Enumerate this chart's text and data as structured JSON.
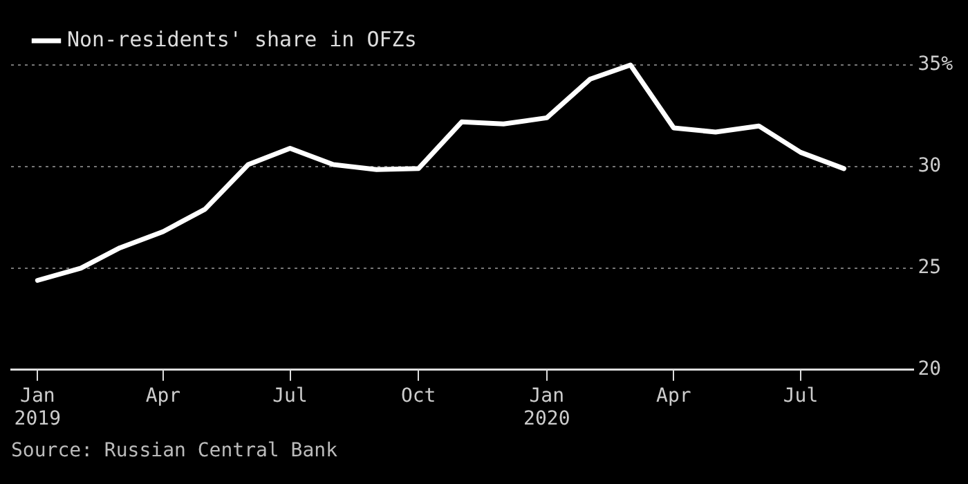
{
  "chart_data": {
    "type": "line",
    "x": [
      "2019-01",
      "2019-02",
      "2019-03",
      "2019-04",
      "2019-05",
      "2019-06",
      "2019-07",
      "2019-08",
      "2019-09",
      "2019-10",
      "2019-11",
      "2019-12",
      "2020-01",
      "2020-02",
      "2020-03",
      "2020-04",
      "2020-05",
      "2020-06",
      "2020-07",
      "2020-08"
    ],
    "series": [
      {
        "name": "Non-residents' share in OFZs",
        "color": "#ffffff",
        "values": [
          24.4,
          25.0,
          26.0,
          26.8,
          27.9,
          30.1,
          30.9,
          30.1,
          29.85,
          29.9,
          32.2,
          32.1,
          32.4,
          34.3,
          35.0,
          31.9,
          31.7,
          32.0,
          30.7,
          29.9
        ]
      }
    ],
    "xlim": [
      "2018-12-13",
      "2020-09-20"
    ],
    "xticks": [
      {
        "value": "2019-01",
        "label": "Jan\n2019"
      },
      {
        "value": "2019-04",
        "label": "Apr"
      },
      {
        "value": "2019-07",
        "label": "Jul"
      },
      {
        "value": "2019-10",
        "label": "Oct"
      },
      {
        "value": "2020-01",
        "label": "Jan\n2020"
      },
      {
        "value": "2020-04",
        "label": "Apr"
      },
      {
        "value": "2020-07",
        "label": "Jul"
      }
    ],
    "ylim": [
      20,
      35
    ],
    "yticks": [
      20,
      25,
      30,
      {
        "value": 35,
        "label": "35%"
      }
    ],
    "grid": "y",
    "legend": "top left",
    "marker": "none",
    "line_style": "solid",
    "annotations": [
      "Source: Russian Central Bank"
    ]
  }
}
